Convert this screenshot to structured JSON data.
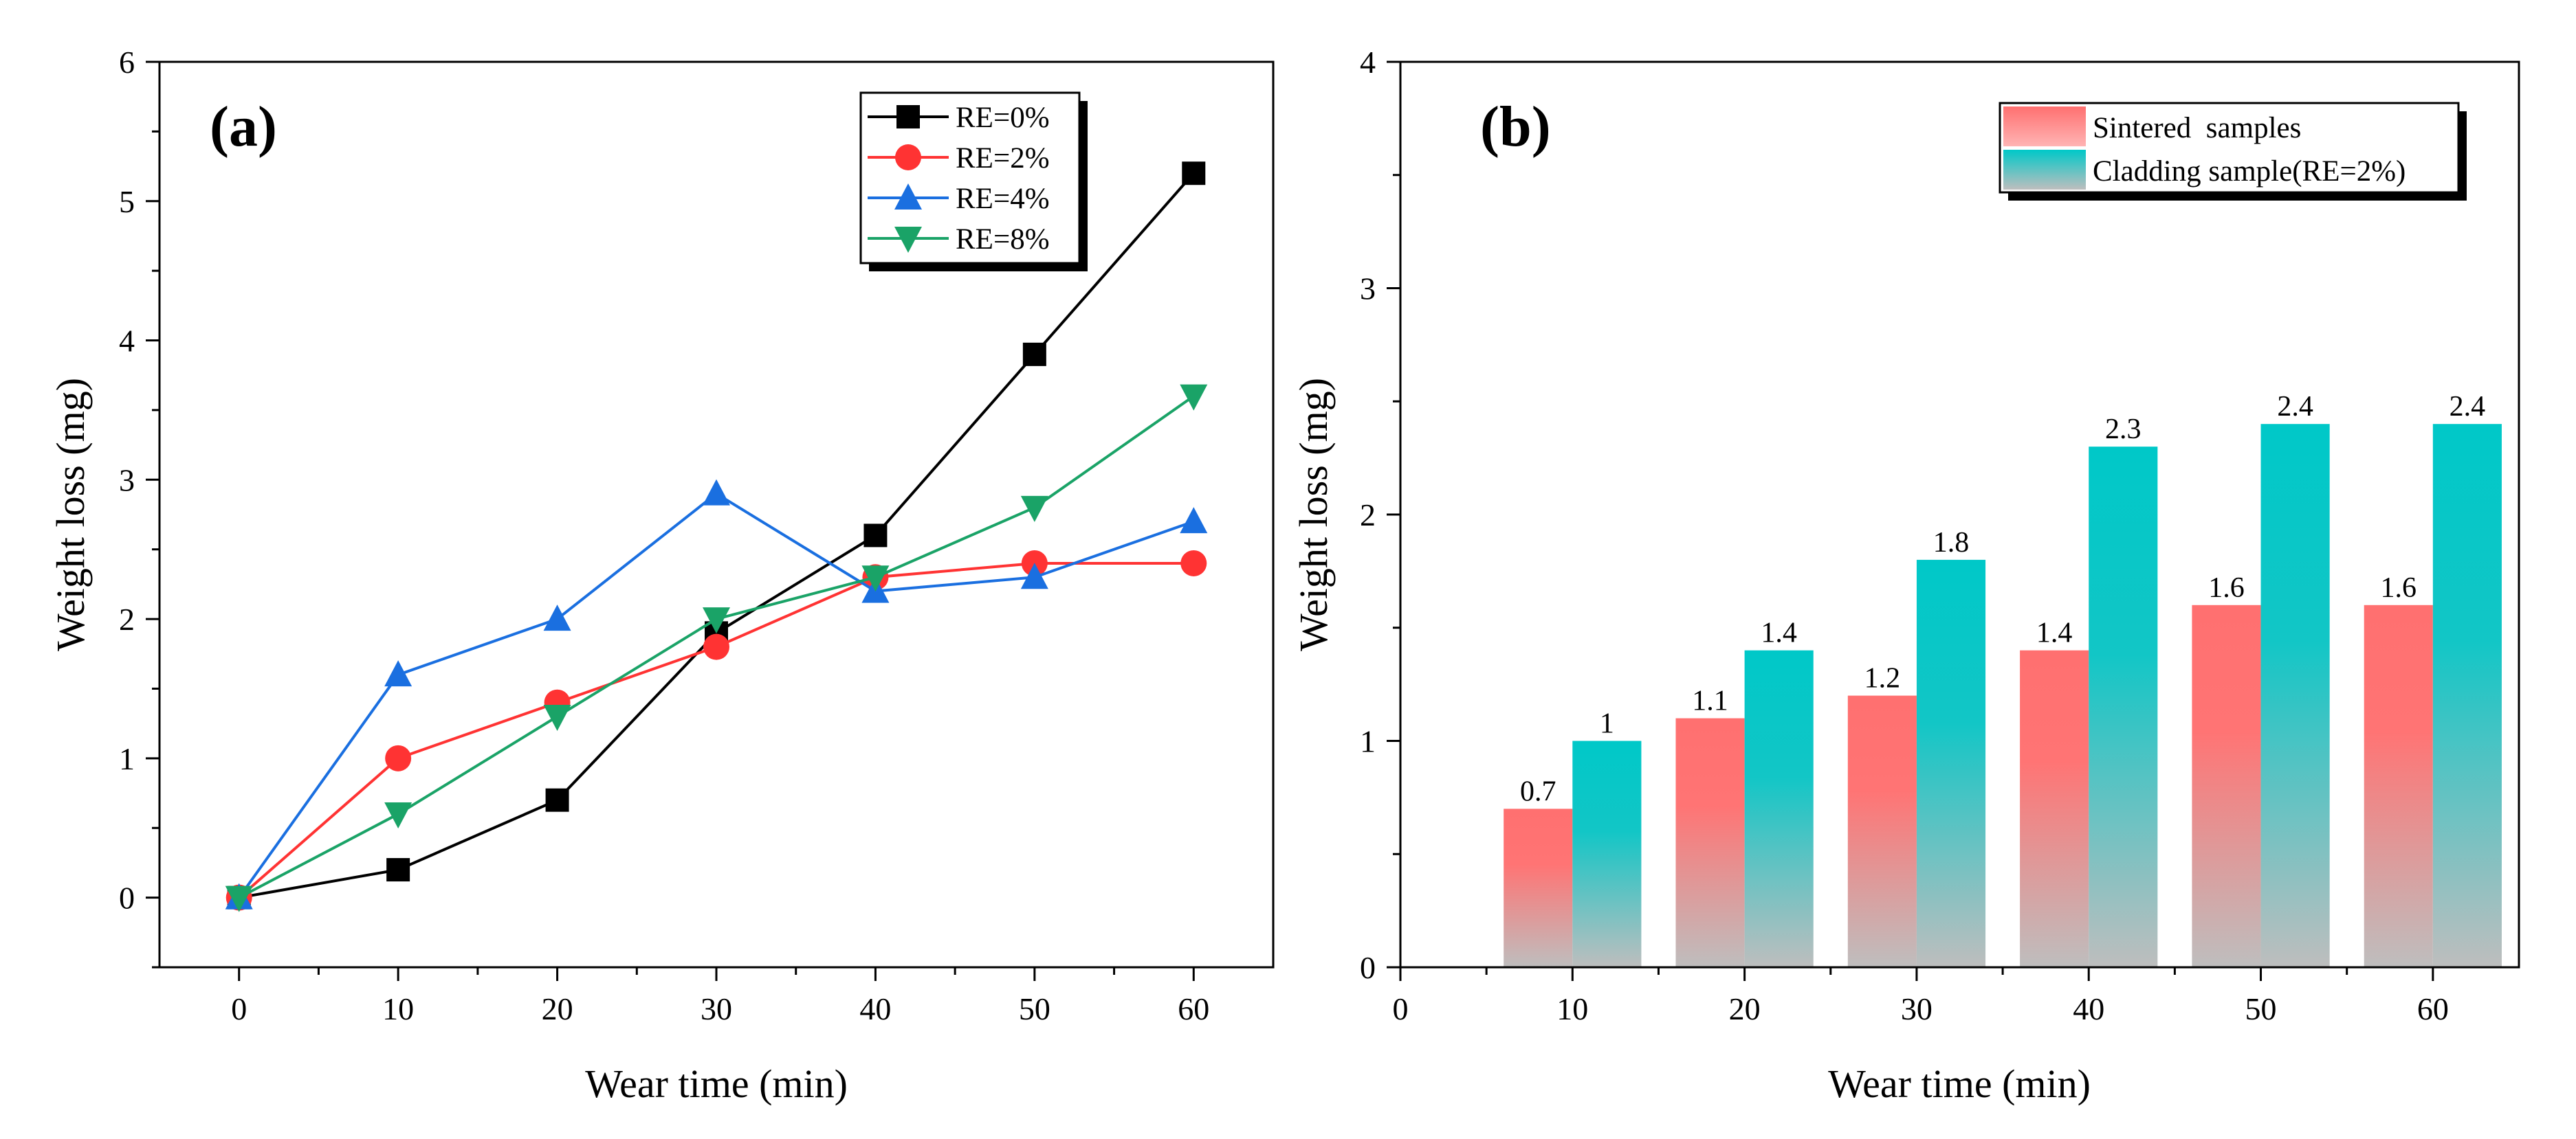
{
  "colors": {
    "RE=0%": "#000000",
    "RE=2%": "#ff3333",
    "RE=4%": "#1a6fe0",
    "RE=8%": "#1aa367",
    "sintered_top": "#ff7070",
    "cladding_top": "#00c8c8",
    "bar_bottom": "#bebebe"
  },
  "chart_data": [
    {
      "type": "line",
      "panel_label": "(a)",
      "title": "",
      "xlabel": "Wear time (min)",
      "ylabel": "Weight loss (mg)",
      "xlim": [
        -5,
        65
      ],
      "ylim": [
        -0.5,
        6
      ],
      "xticks": [
        0,
        10,
        20,
        30,
        40,
        50,
        60
      ],
      "xtick_labels": [
        "0",
        "10",
        "20",
        "30",
        "40",
        "50",
        "60"
      ],
      "yticks": [
        0,
        1,
        2,
        3,
        4,
        5,
        6
      ],
      "ytick_labels": [
        "0",
        "1",
        "2",
        "3",
        "4",
        "5",
        "6"
      ],
      "x": [
        0,
        10,
        20,
        30,
        40,
        50,
        60
      ],
      "legend_position": "top-right",
      "series": [
        {
          "name": "RE=0%",
          "marker": "square",
          "values": [
            0,
            0.2,
            0.7,
            1.9,
            2.6,
            3.9,
            5.2
          ]
        },
        {
          "name": "RE=2%",
          "marker": "circle",
          "values": [
            0,
            1.0,
            1.4,
            1.8,
            2.3,
            2.4,
            2.4
          ]
        },
        {
          "name": "RE=4%",
          "marker": "triangle-up",
          "values": [
            0,
            1.6,
            2.0,
            2.9,
            2.2,
            2.3,
            2.7
          ]
        },
        {
          "name": "RE=8%",
          "marker": "triangle-down",
          "values": [
            0,
            0.6,
            1.3,
            2.0,
            2.3,
            2.8,
            3.6
          ]
        }
      ]
    },
    {
      "type": "bar",
      "panel_label": "(b)",
      "title": "",
      "xlabel": "Wear time (min)",
      "ylabel": "Weight loss (mg)",
      "xlim": [
        0,
        65
      ],
      "ylim": [
        0,
        4
      ],
      "xticks": [
        0,
        10,
        20,
        30,
        40,
        50,
        60
      ],
      "xtick_labels": [
        "0",
        "10",
        "20",
        "30",
        "40",
        "50",
        "60"
      ],
      "yticks": [
        0,
        1,
        2,
        3,
        4
      ],
      "ytick_labels": [
        "0",
        "1",
        "2",
        "3",
        "4"
      ],
      "categories": [
        10,
        20,
        30,
        40,
        50,
        60
      ],
      "legend_position": "top-right",
      "series": [
        {
          "name": "Sintered  samples",
          "values": [
            0.7,
            1.1,
            1.2,
            1.4,
            1.6,
            1.6
          ],
          "labels": [
            "0.7",
            "1.1",
            "1.2",
            "1.4",
            "1.6",
            "1.6"
          ]
        },
        {
          "name": "Cladding sample(RE=2%)",
          "values": [
            1.0,
            1.4,
            1.8,
            2.3,
            2.4,
            2.4
          ],
          "labels": [
            "1",
            "1.4",
            "1.8",
            "2.3",
            "2.4",
            "2.4"
          ]
        }
      ]
    }
  ]
}
